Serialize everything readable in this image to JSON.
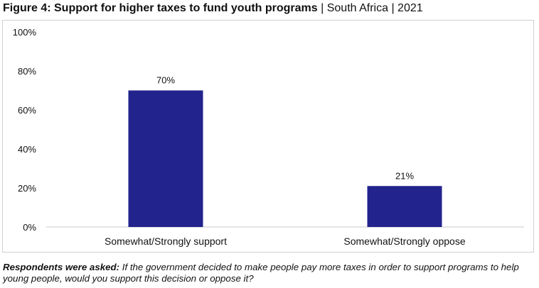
{
  "title": {
    "main": "Figure 4: Support for higher taxes to fund youth programs",
    "suffix": " | South Africa | 2021"
  },
  "note": {
    "lead": "Respondents were asked:",
    "text": " If the government decided to make people pay more taxes in order to support programs to help young people, would you support this decision or oppose it?"
  },
  "colors": {
    "bar": "#22238d",
    "axis": "#c8c8c8"
  },
  "chart_data": {
    "type": "bar",
    "categories": [
      "Somewhat/Strongly support",
      "Somewhat/Strongly oppose"
    ],
    "values": [
      70,
      21
    ],
    "data_labels": [
      "70%",
      "21%"
    ],
    "yticks": [
      "0%",
      "20%",
      "40%",
      "60%",
      "80%",
      "100%"
    ],
    "ylim": [
      0,
      100
    ],
    "grid": false,
    "legend": "none"
  }
}
